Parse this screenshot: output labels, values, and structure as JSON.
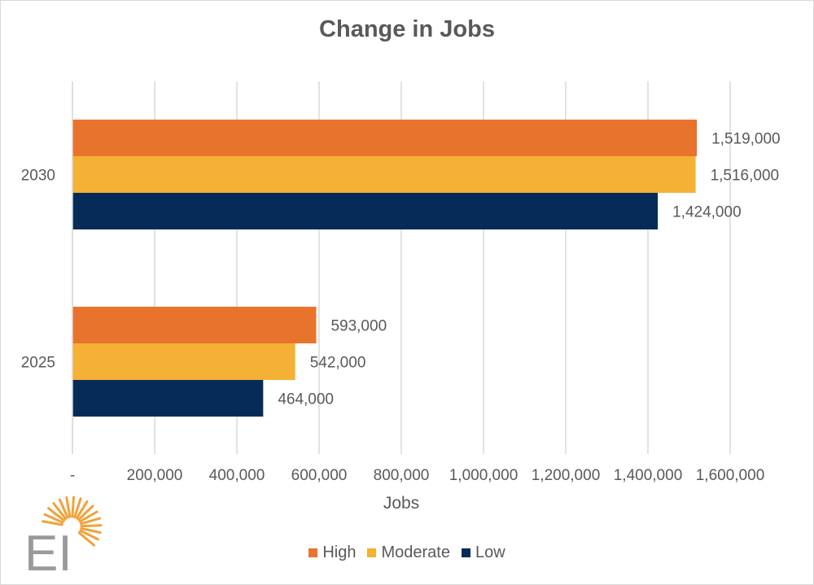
{
  "chart_data": {
    "type": "bar",
    "orientation": "horizontal",
    "title": "Change in Jobs",
    "xlabel": "Jobs",
    "ylabel": "",
    "categories": [
      "2030",
      "2025"
    ],
    "series": [
      {
        "name": "High",
        "color": "#e8732c",
        "values": [
          1519000,
          593000
        ],
        "labels": [
          "1,519,000",
          "593,000"
        ]
      },
      {
        "name": "Moderate",
        "color": "#f4b135",
        "values": [
          1516000,
          542000
        ],
        "labels": [
          "1,516,000",
          "542,000"
        ]
      },
      {
        "name": "Low",
        "color": "#072b59",
        "values": [
          1424000,
          464000
        ],
        "labels": [
          "1,424,000",
          "464,000"
        ]
      }
    ],
    "xlim": [
      0,
      1600000
    ],
    "xticks": [
      0,
      200000,
      400000,
      600000,
      800000,
      1000000,
      1200000,
      1400000,
      1600000
    ],
    "xtick_labels": [
      "-",
      "200,000",
      "400,000",
      "600,000",
      "800,000",
      "1,000,000",
      "1,200,000",
      "1,400,000",
      "1,600,000"
    ],
    "grid": "vertical",
    "legend_position": "bottom"
  },
  "logo": {
    "text": "EI",
    "icon": "sunburst-logo-icon"
  }
}
